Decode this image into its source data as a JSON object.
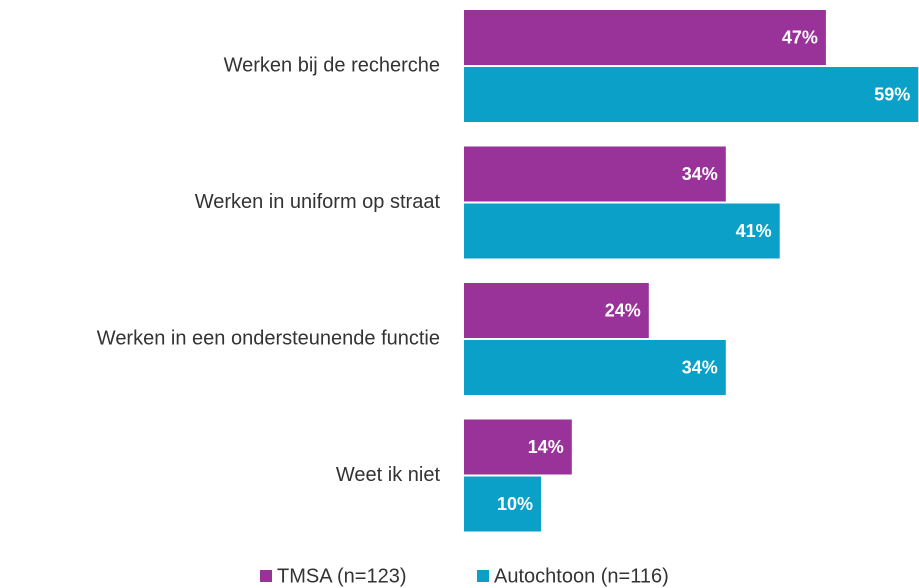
{
  "chart_data": {
    "type": "hbar",
    "categories": [
      "Werken bij de recherche",
      "Werken in uniform op straat",
      "Werken in een ondersteunende functie",
      "Weet ik niet"
    ],
    "series": [
      {
        "name": "TMSA (n=123)",
        "color": "#993399",
        "values": [
          47,
          34,
          24,
          14
        ],
        "value_labels": [
          "47%",
          "34%",
          "24%",
          "14%"
        ]
      },
      {
        "name": "Autochtoon (n=116)",
        "color": "#0aa0c8",
        "values": [
          59,
          41,
          34,
          10
        ],
        "value_labels": [
          "59%",
          "41%",
          "34%",
          "10%"
        ]
      }
    ],
    "legend": "bottom"
  }
}
